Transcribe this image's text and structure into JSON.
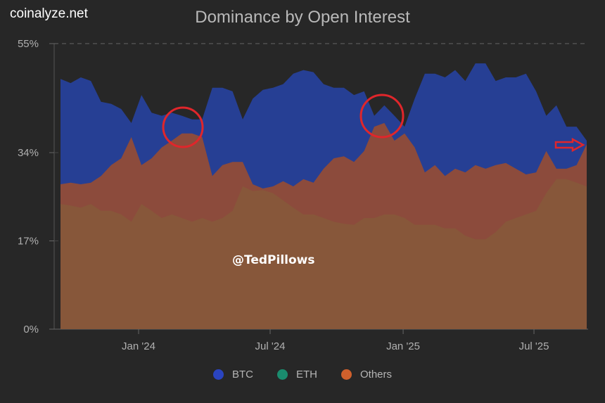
{
  "brand": "coinalyze.net",
  "watermark": "@TedPillows",
  "chart_data": {
    "type": "area",
    "title": "Dominance by Open Interest",
    "ylim": [
      0,
      55
    ],
    "y_ticks": [
      "0%",
      "17%",
      "34%",
      "55%"
    ],
    "y_tick_values": [
      0,
      17,
      34,
      55
    ],
    "x_ticks": [
      "Jan '24",
      "Jul '24",
      "Jan '25",
      "Jul '25"
    ],
    "x_tick_dates": [
      "2024-01-01",
      "2024-07-01",
      "2025-01-01",
      "2025-07-01"
    ],
    "grid": "horizontal dashed",
    "legend_placement": "bottom",
    "x": [
      "2023-09-15",
      "2023-09-29",
      "2023-10-13",
      "2023-10-27",
      "2023-11-10",
      "2023-11-24",
      "2023-12-08",
      "2023-12-22",
      "2024-01-05",
      "2024-01-19",
      "2024-02-02",
      "2024-02-16",
      "2024-03-01",
      "2024-03-15",
      "2024-03-29",
      "2024-04-12",
      "2024-04-26",
      "2024-05-10",
      "2024-05-24",
      "2024-06-07",
      "2024-06-21",
      "2024-07-05",
      "2024-07-19",
      "2024-08-02",
      "2024-08-16",
      "2024-08-30",
      "2024-09-13",
      "2024-09-27",
      "2024-10-11",
      "2024-10-25",
      "2024-11-08",
      "2024-11-22",
      "2024-12-06",
      "2024-12-20",
      "2025-01-03",
      "2025-01-17",
      "2025-01-31",
      "2025-02-14",
      "2025-02-28",
      "2025-03-14",
      "2025-03-28",
      "2025-04-11",
      "2025-04-25",
      "2025-05-09",
      "2025-05-23",
      "2025-06-06",
      "2025-06-20",
      "2025-07-04",
      "2025-07-18",
      "2025-08-01",
      "2025-08-15",
      "2025-08-29",
      "2025-09-12"
    ],
    "series": [
      {
        "name": "BTC",
        "color": "#2a44a6",
        "values": [
          48.2,
          47.4,
          48.5,
          47.8,
          43.8,
          43.4,
          42.4,
          39.7,
          45.1,
          41.7,
          41.1,
          41.7,
          41.1,
          40.4,
          40.4,
          46.5,
          46.5,
          45.8,
          40.4,
          44.4,
          46.1,
          46.5,
          47.2,
          49.2,
          49.9,
          49.5,
          47.2,
          46.5,
          46.5,
          45.1,
          45.8,
          41.1,
          43.1,
          41.1,
          39.0,
          44.4,
          49.2,
          49.2,
          48.5,
          49.9,
          47.8,
          51.2,
          51.2,
          47.8,
          48.5,
          48.5,
          49.2,
          45.8,
          41.1,
          43.1,
          39.0,
          39.0,
          36.3
        ]
      },
      {
        "name": "ETH",
        "color": "#1a8c6e",
        "values": [
          24.1,
          23.8,
          23.4,
          24.1,
          22.8,
          22.8,
          22.1,
          20.7,
          24.1,
          22.8,
          21.4,
          22.1,
          21.4,
          20.7,
          21.4,
          20.7,
          21.4,
          22.8,
          27.5,
          26.6,
          26.8,
          26.2,
          24.8,
          23.4,
          22.1,
          22.1,
          21.4,
          20.7,
          20.3,
          20.1,
          21.4,
          21.4,
          22.1,
          22.1,
          21.4,
          20.1,
          20.1,
          20.1,
          19.4,
          19.4,
          18.0,
          17.3,
          17.3,
          18.7,
          20.7,
          21.4,
          22.1,
          22.8,
          26.2,
          28.9,
          28.9,
          28.2,
          27.5
        ]
      },
      {
        "name": "Others",
        "color": "#d0602c",
        "values": [
          27.9,
          28.2,
          27.9,
          28.2,
          29.5,
          31.6,
          32.9,
          37.0,
          31.6,
          32.9,
          35.0,
          36.3,
          37.7,
          37.7,
          37.0,
          29.5,
          31.6,
          32.2,
          32.2,
          27.9,
          27.1,
          27.5,
          28.5,
          27.5,
          28.9,
          28.2,
          30.9,
          32.9,
          33.3,
          32.2,
          34.3,
          39.0,
          39.7,
          36.3,
          37.7,
          35.0,
          30.2,
          31.6,
          29.5,
          30.9,
          30.2,
          31.6,
          30.9,
          31.6,
          32.0,
          30.9,
          29.8,
          30.2,
          34.3,
          30.9,
          30.9,
          31.6,
          35.6
        ]
      }
    ],
    "annotations": [
      "red circle around Others peak near Mar 2024",
      "red circle around Others peak near Dec 2024",
      "red arrow pointing at latest value"
    ]
  },
  "colors": {
    "background": "#272727",
    "btc_area": "#263f94",
    "others_area": "#8c4b3c",
    "overlap_area": "#87573a",
    "annotation": "#e0262b"
  }
}
